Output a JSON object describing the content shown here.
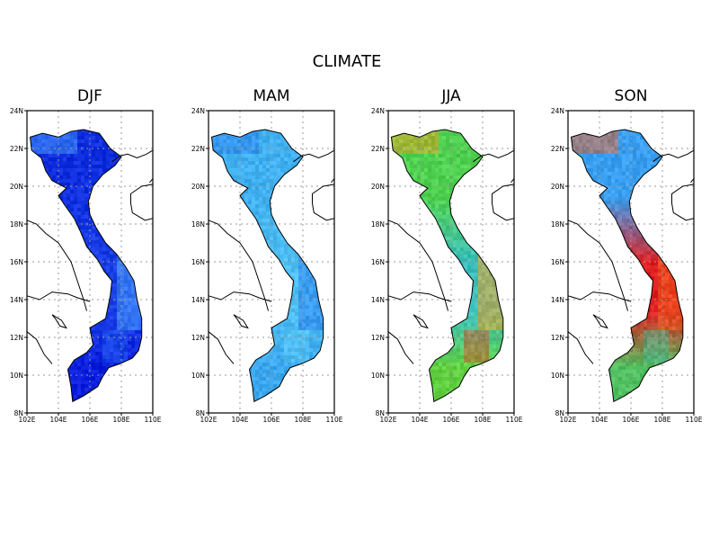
{
  "figure_title": "CLIMATE",
  "panels": [
    {
      "title": "DJF",
      "colors": {
        "north": "#1030e0",
        "center": "#1a40e6",
        "south": "#0a1edc",
        "hot1": "#4aa0ff",
        "hot2": "#2060f0"
      }
    },
    {
      "title": "MAM",
      "colors": {
        "north": "#40b0f0",
        "center": "#50c0f4",
        "south": "#3aa6ee",
        "hot1": "#2a80ec",
        "hot2": "#60d0f8"
      }
    },
    {
      "title": "JJA",
      "colors": {
        "north": "#50d050",
        "center": "#3cc0c0",
        "south": "#60d040",
        "hot1": "#f0a020",
        "hot2": "#e84020"
      }
    },
    {
      "title": "SON",
      "colors": {
        "north": "#3a9ff0",
        "center": "#e02020",
        "south": "#50c060",
        "hot1": "#f06020",
        "hot2": "#40c0a0"
      }
    }
  ],
  "map_axes": {
    "x_ticks": [
      "102E",
      "104E",
      "106E",
      "108E",
      "110E"
    ],
    "y_ticks": [
      "8N",
      "10N",
      "12N",
      "14N",
      "16N",
      "18N",
      "20N",
      "22N",
      "24N"
    ],
    "lon_range": [
      102,
      110
    ],
    "lat_range": [
      8,
      24
    ]
  },
  "colors": {
    "frame": "#000000",
    "grid": "#999999",
    "coast": "#000000"
  }
}
